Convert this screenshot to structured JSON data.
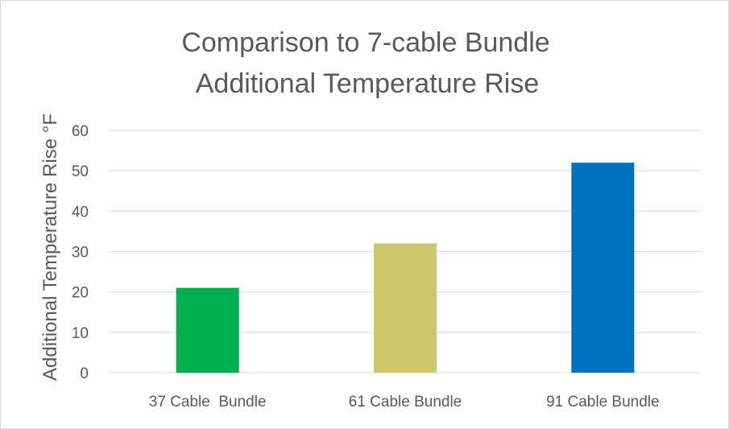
{
  "chart_data": {
    "type": "bar",
    "title_lines": [
      "Comparison to 7-cable Bundle",
      "Additional Temperature Rise"
    ],
    "xlabel": "",
    "ylabel": "Additional Temperature Rise °F",
    "ylim": [
      0,
      60
    ],
    "yticks": [
      0,
      10,
      20,
      30,
      40,
      50,
      60
    ],
    "grid": true,
    "legend": "none",
    "categories": [
      "37 Cable  Bundle",
      "61 Cable Bundle",
      "91 Cable Bundle"
    ],
    "values": [
      21,
      32,
      52
    ],
    "colors": [
      "#00b050",
      "#cdc66a",
      "#0070c0"
    ]
  }
}
